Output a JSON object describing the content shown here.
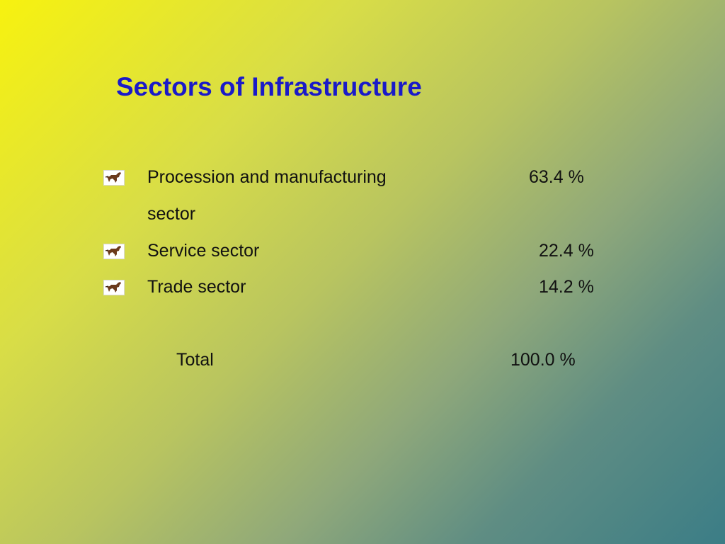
{
  "slide": {
    "title": "Sectors of Infrastructure",
    "items": [
      {
        "label_line1": "Procession and manufacturing",
        "label_line2": "sector",
        "value": "63.4  %",
        "icon": "horse-icon"
      },
      {
        "label_line1": "Service sector",
        "value": "22.4  %",
        "icon": "horse-icon"
      },
      {
        "label_line1": "Trade sector",
        "value": "14.2  %",
        "icon": "horse-icon"
      }
    ],
    "total": {
      "label": "Total",
      "value": "100.0  %"
    },
    "colors": {
      "title": "#1a1ac8",
      "text": "#111111",
      "gradient_start": "#f7f20f",
      "gradient_end": "#3b7d86"
    }
  }
}
